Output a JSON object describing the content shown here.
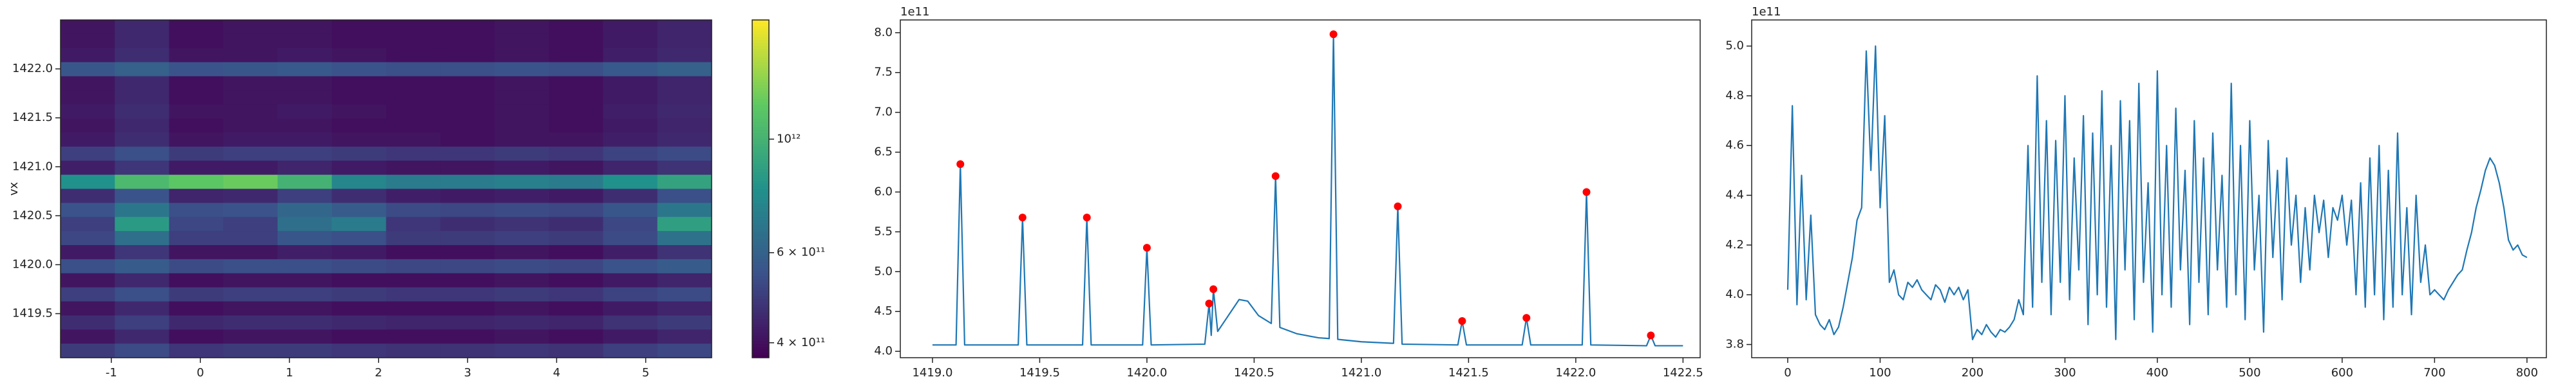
{
  "chart_data": [
    {
      "type": "heatmap",
      "y_label": "vx",
      "colormap": "viridis",
      "log": true,
      "xlim": [
        -1.57,
        5.74
      ],
      "ylim": [
        1419.05,
        1422.5
      ],
      "xticks": [
        -1,
        0,
        1,
        2,
        3,
        4,
        5
      ],
      "yticks": [
        1419.5,
        {
          "value": 1420.0,
          "label": "1420.0"
        },
        1420.5,
        {
          "value": 1421.0,
          "label": "1421.0"
        },
        1421.5,
        {
          "value": 1422.0,
          "label": "1422.0"
        }
      ],
      "clim": [
        374000000000.0,
        1710000000000.0
      ],
      "cticks": [
        {
          "value": 1000000000000.0,
          "label": "10¹²"
        },
        {
          "value": 600000000000.0,
          "label": "6 × 10¹¹"
        },
        {
          "value": 400000000000.0,
          "label": "4 × 10¹¹"
        }
      ],
      "z": [
        [
          410000000000.0,
          450000000000.0,
          400000000000.0,
          410000000000.0,
          410000000000.0,
          400000000000.0,
          400000000000.0,
          400000000000.0,
          410000000000.0,
          400000000000.0,
          420000000000.0,
          440000000000.0
        ],
        [
          410000000000.0,
          450000000000.0,
          400000000000.0,
          410000000000.0,
          410000000000.0,
          400000000000.0,
          400000000000.0,
          400000000000.0,
          410000000000.0,
          400000000000.0,
          420000000000.0,
          440000000000.0
        ],
        [
          420000000000.0,
          460000000000.0,
          410000000000.0,
          410000000000.0,
          420000000000.0,
          410000000000.0,
          400000000000.0,
          400000000000.0,
          410000000000.0,
          400000000000.0,
          430000000000.0,
          450000000000.0
        ],
        [
          560000000000.0,
          600000000000.0,
          550000000000.0,
          560000000000.0,
          570000000000.0,
          550000000000.0,
          540000000000.0,
          540000000000.0,
          550000000000.0,
          540000000000.0,
          570000000000.0,
          600000000000.0
        ],
        [
          410000000000.0,
          450000000000.0,
          400000000000.0,
          410000000000.0,
          410000000000.0,
          400000000000.0,
          400000000000.0,
          400000000000.0,
          410000000000.0,
          400000000000.0,
          420000000000.0,
          440000000000.0
        ],
        [
          410000000000.0,
          450000000000.0,
          400000000000.0,
          410000000000.0,
          410000000000.0,
          400000000000.0,
          400000000000.0,
          400000000000.0,
          410000000000.0,
          400000000000.0,
          420000000000.0,
          440000000000.0
        ],
        [
          420000000000.0,
          460000000000.0,
          410000000000.0,
          410000000000.0,
          420000000000.0,
          410000000000.0,
          400000000000.0,
          400000000000.0,
          410000000000.0,
          400000000000.0,
          430000000000.0,
          450000000000.0
        ],
        [
          410000000000.0,
          450000000000.0,
          400000000000.0,
          410000000000.0,
          410000000000.0,
          400000000000.0,
          400000000000.0,
          400000000000.0,
          410000000000.0,
          400000000000.0,
          420000000000.0,
          440000000000.0
        ],
        [
          420000000000.0,
          460000000000.0,
          410000000000.0,
          420000000000.0,
          420000000000.0,
          410000000000.0,
          410000000000.0,
          400000000000.0,
          410000000000.0,
          410000000000.0,
          430000000000.0,
          450000000000.0
        ],
        [
          500000000000.0,
          540000000000.0,
          490000000000.0,
          500000000000.0,
          500000000000.0,
          490000000000.0,
          480000000000.0,
          480000000000.0,
          490000000000.0,
          480000000000.0,
          510000000000.0,
          530000000000.0
        ],
        [
          430000000000.0,
          480000000000.0,
          420000000000.0,
          420000000000.0,
          440000000000.0,
          420000000000.0,
          410000000000.0,
          410000000000.0,
          420000000000.0,
          410000000000.0,
          440000000000.0,
          470000000000.0
        ],
        [
          800000000000.0,
          1050000000000.0,
          1150000000000.0,
          1200000000000.0,
          1000000000000.0,
          750000000000.0,
          700000000000.0,
          700000000000.0,
          720000000000.0,
          700000000000.0,
          800000000000.0,
          900000000000.0
        ],
        [
          460000000000.0,
          550000000000.0,
          440000000000.0,
          450000000000.0,
          500000000000.0,
          460000000000.0,
          430000000000.0,
          420000000000.0,
          430000000000.0,
          420000000000.0,
          460000000000.0,
          540000000000.0
        ],
        [
          550000000000.0,
          680000000000.0,
          540000000000.0,
          550000000000.0,
          620000000000.0,
          580000000000.0,
          530000000000.0,
          520000000000.0,
          530000000000.0,
          520000000000.0,
          560000000000.0,
          680000000000.0
        ],
        [
          500000000000.0,
          850000000000.0,
          520000000000.0,
          500000000000.0,
          650000000000.0,
          700000000000.0,
          480000000000.0,
          460000000000.0,
          470000000000.0,
          460000000000.0,
          520000000000.0,
          880000000000.0
        ],
        [
          520000000000.0,
          650000000000.0,
          500000000000.0,
          500000000000.0,
          560000000000.0,
          540000000000.0,
          490000000000.0,
          490000000000.0,
          500000000000.0,
          490000000000.0,
          530000000000.0,
          660000000000.0
        ],
        [
          420000000000.0,
          480000000000.0,
          410000000000.0,
          410000000000.0,
          430000000000.0,
          420000000000.0,
          400000000000.0,
          400000000000.0,
          410000000000.0,
          400000000000.0,
          430000000000.0,
          470000000000.0
        ],
        [
          540000000000.0,
          580000000000.0,
          530000000000.0,
          540000000000.0,
          540000000000.0,
          530000000000.0,
          520000000000.0,
          520000000000.0,
          530000000000.0,
          520000000000.0,
          550000000000.0,
          580000000000.0
        ],
        [
          410000000000.0,
          450000000000.0,
          400000000000.0,
          410000000000.0,
          410000000000.0,
          400000000000.0,
          400000000000.0,
          400000000000.0,
          410000000000.0,
          400000000000.0,
          420000000000.0,
          440000000000.0
        ],
        [
          500000000000.0,
          540000000000.0,
          490000000000.0,
          500000000000.0,
          500000000000.0,
          490000000000.0,
          480000000000.0,
          480000000000.0,
          490000000000.0,
          480000000000.0,
          510000000000.0,
          530000000000.0
        ],
        [
          410000000000.0,
          450000000000.0,
          400000000000.0,
          410000000000.0,
          410000000000.0,
          400000000000.0,
          400000000000.0,
          400000000000.0,
          410000000000.0,
          400000000000.0,
          420000000000.0,
          440000000000.0
        ],
        [
          460000000000.0,
          500000000000.0,
          450000000000.0,
          460000000000.0,
          460000000000.0,
          450000000000.0,
          440000000000.0,
          440000000000.0,
          450000000000.0,
          440000000000.0,
          470000000000.0,
          490000000000.0
        ],
        [
          410000000000.0,
          450000000000.0,
          400000000000.0,
          410000000000.0,
          410000000000.0,
          400000000000.0,
          400000000000.0,
          400000000000.0,
          410000000000.0,
          400000000000.0,
          420000000000.0,
          440000000000.0
        ],
        [
          490000000000.0,
          530000000000.0,
          480000000000.0,
          490000000000.0,
          490000000000.0,
          480000000000.0,
          470000000000.0,
          470000000000.0,
          480000000000.0,
          470000000000.0,
          500000000000.0,
          520000000000.0
        ]
      ]
    },
    {
      "type": "line",
      "offset_label": "1e11",
      "xlim": [
        1418.85,
        1422.58
      ],
      "ylim": [
        3.92,
        8.16
      ],
      "xticks": [
        {
          "value": 1419.0,
          "label": "1419.0"
        },
        1419.5,
        {
          "value": 1420.0,
          "label": "1420.0"
        },
        1420.5,
        {
          "value": 1421.0,
          "label": "1421.0"
        },
        1421.5,
        {
          "value": 1422.0,
          "label": "1422.0"
        },
        1422.5
      ],
      "yticks": [
        {
          "value": 4,
          "label": "4.0"
        },
        4.5,
        {
          "value": 5,
          "label": "5.0"
        },
        5.5,
        {
          "value": 6,
          "label": "6.0"
        },
        6.5,
        {
          "value": 7,
          "label": "7.0"
        },
        7.5,
        {
          "value": 8,
          "label": "8.0"
        }
      ],
      "lines": [
        {
          "color": "#1f77b4",
          "x": [
            1419.0,
            1419.11,
            1419.13,
            1419.15,
            1419.4,
            1419.42,
            1419.44,
            1419.7,
            1419.72,
            1419.74,
            1419.98,
            1420.0,
            1420.02,
            1420.27,
            1420.29,
            1420.3,
            1420.31,
            1420.33,
            1420.38,
            1420.43,
            1420.47,
            1420.52,
            1420.58,
            1420.6,
            1420.62,
            1420.7,
            1420.8,
            1420.85,
            1420.87,
            1420.89,
            1421.0,
            1421.15,
            1421.17,
            1421.19,
            1421.45,
            1421.47,
            1421.49,
            1421.75,
            1421.77,
            1421.79,
            1422.03,
            1422.05,
            1422.07,
            1422.33,
            1422.35,
            1422.37,
            1422.5
          ],
          "values": [
            4.08,
            4.08,
            6.35,
            4.08,
            4.08,
            5.68,
            4.08,
            4.08,
            5.68,
            4.08,
            4.08,
            5.3,
            4.08,
            4.09,
            4.6,
            4.2,
            4.78,
            4.25,
            4.45,
            4.65,
            4.63,
            4.45,
            4.35,
            6.2,
            4.3,
            4.22,
            4.17,
            4.16,
            7.98,
            4.15,
            4.12,
            4.1,
            5.82,
            4.09,
            4.08,
            4.38,
            4.08,
            4.08,
            4.42,
            4.08,
            4.08,
            6.0,
            4.08,
            4.07,
            4.2,
            4.07,
            4.07
          ]
        }
      ],
      "points": {
        "color": "#ff0000",
        "x": [
          1419.13,
          1419.42,
          1419.72,
          1420.0,
          1420.29,
          1420.31,
          1420.6,
          1420.87,
          1421.17,
          1421.47,
          1421.77,
          1422.05,
          1422.35
        ],
        "values": [
          6.35,
          5.68,
          5.68,
          5.3,
          4.6,
          4.78,
          6.2,
          7.98,
          5.82,
          4.38,
          4.42,
          6.0,
          4.2
        ]
      }
    },
    {
      "type": "line",
      "offset_label": "1e11",
      "xlim": [
        -39,
        821
      ],
      "ylim": [
        3.747,
        5.105
      ],
      "xticks": [
        0,
        100,
        200,
        300,
        400,
        500,
        600,
        700,
        800
      ],
      "yticks": [
        3.8,
        {
          "value": 4,
          "label": "4.0"
        },
        4.2,
        4.4,
        4.6,
        4.8,
        {
          "value": 5,
          "label": "5.0"
        }
      ],
      "lines": [
        {
          "color": "#1f77b4",
          "x": [
            0,
            5,
            10,
            15,
            20,
            25,
            30,
            35,
            40,
            45,
            50,
            55,
            60,
            65,
            70,
            75,
            80,
            85,
            90,
            95,
            100,
            105,
            110,
            115,
            120,
            125,
            130,
            135,
            140,
            145,
            150,
            155,
            160,
            165,
            170,
            175,
            180,
            185,
            190,
            195,
            200,
            205,
            210,
            215,
            220,
            225,
            230,
            235,
            240,
            245,
            250,
            255,
            260,
            265,
            270,
            275,
            280,
            285,
            290,
            295,
            300,
            305,
            310,
            315,
            320,
            325,
            330,
            335,
            340,
            345,
            350,
            355,
            360,
            365,
            370,
            375,
            380,
            385,
            390,
            395,
            400,
            405,
            410,
            415,
            420,
            425,
            430,
            435,
            440,
            445,
            450,
            455,
            460,
            465,
            470,
            475,
            480,
            485,
            490,
            495,
            500,
            505,
            510,
            515,
            520,
            525,
            530,
            535,
            540,
            545,
            550,
            555,
            560,
            565,
            570,
            575,
            580,
            585,
            590,
            595,
            600,
            605,
            610,
            615,
            620,
            625,
            630,
            635,
            640,
            645,
            650,
            655,
            660,
            665,
            670,
            675,
            680,
            685,
            690,
            695,
            700,
            705,
            710,
            715,
            720,
            725,
            730,
            735,
            740,
            745,
            750,
            755,
            760,
            765,
            770,
            775,
            780,
            785,
            790,
            795,
            800
          ],
          "values": [
            4.02,
            4.76,
            3.96,
            4.48,
            3.98,
            4.32,
            3.92,
            3.88,
            3.86,
            3.9,
            3.84,
            3.87,
            3.95,
            4.05,
            4.15,
            4.3,
            4.35,
            4.98,
            4.5,
            5.0,
            4.35,
            4.72,
            4.05,
            4.1,
            4.0,
            3.98,
            4.05,
            4.03,
            4.06,
            4.02,
            4.0,
            3.98,
            4.04,
            4.02,
            3.97,
            4.03,
            4.0,
            4.03,
            3.98,
            4.02,
            3.82,
            3.86,
            3.84,
            3.88,
            3.85,
            3.83,
            3.86,
            3.85,
            3.87,
            3.9,
            3.98,
            3.92,
            4.6,
            3.95,
            4.88,
            4.05,
            4.7,
            3.92,
            4.62,
            4.05,
            4.8,
            3.98,
            4.55,
            4.1,
            4.72,
            3.88,
            4.65,
            4.0,
            4.82,
            3.95,
            4.6,
            3.82,
            4.78,
            4.1,
            4.7,
            3.9,
            4.85,
            4.05,
            4.45,
            3.85,
            4.9,
            4.0,
            4.6,
            3.95,
            4.75,
            4.1,
            4.5,
            3.88,
            4.7,
            4.05,
            4.55,
            3.92,
            4.65,
            4.1,
            4.48,
            3.95,
            4.85,
            4.0,
            4.6,
            3.9,
            4.7,
            4.1,
            4.4,
            3.85,
            4.62,
            4.15,
            4.5,
            3.98,
            4.55,
            4.2,
            4.4,
            4.05,
            4.35,
            4.1,
            4.4,
            4.25,
            4.38,
            4.15,
            4.35,
            4.3,
            4.4,
            4.2,
            4.38,
            4.0,
            4.45,
            3.95,
            4.55,
            4.0,
            4.6,
            3.9,
            4.5,
            3.95,
            4.65,
            4.0,
            4.35,
            3.92,
            4.4,
            4.05,
            4.2,
            4.0,
            4.02,
            4.0,
            3.98,
            4.02,
            4.05,
            4.08,
            4.1,
            4.18,
            4.25,
            4.35,
            4.42,
            4.5,
            4.55,
            4.52,
            4.45,
            4.35,
            4.22,
            4.18,
            4.2,
            4.16,
            4.15
          ]
        }
      ]
    }
  ]
}
